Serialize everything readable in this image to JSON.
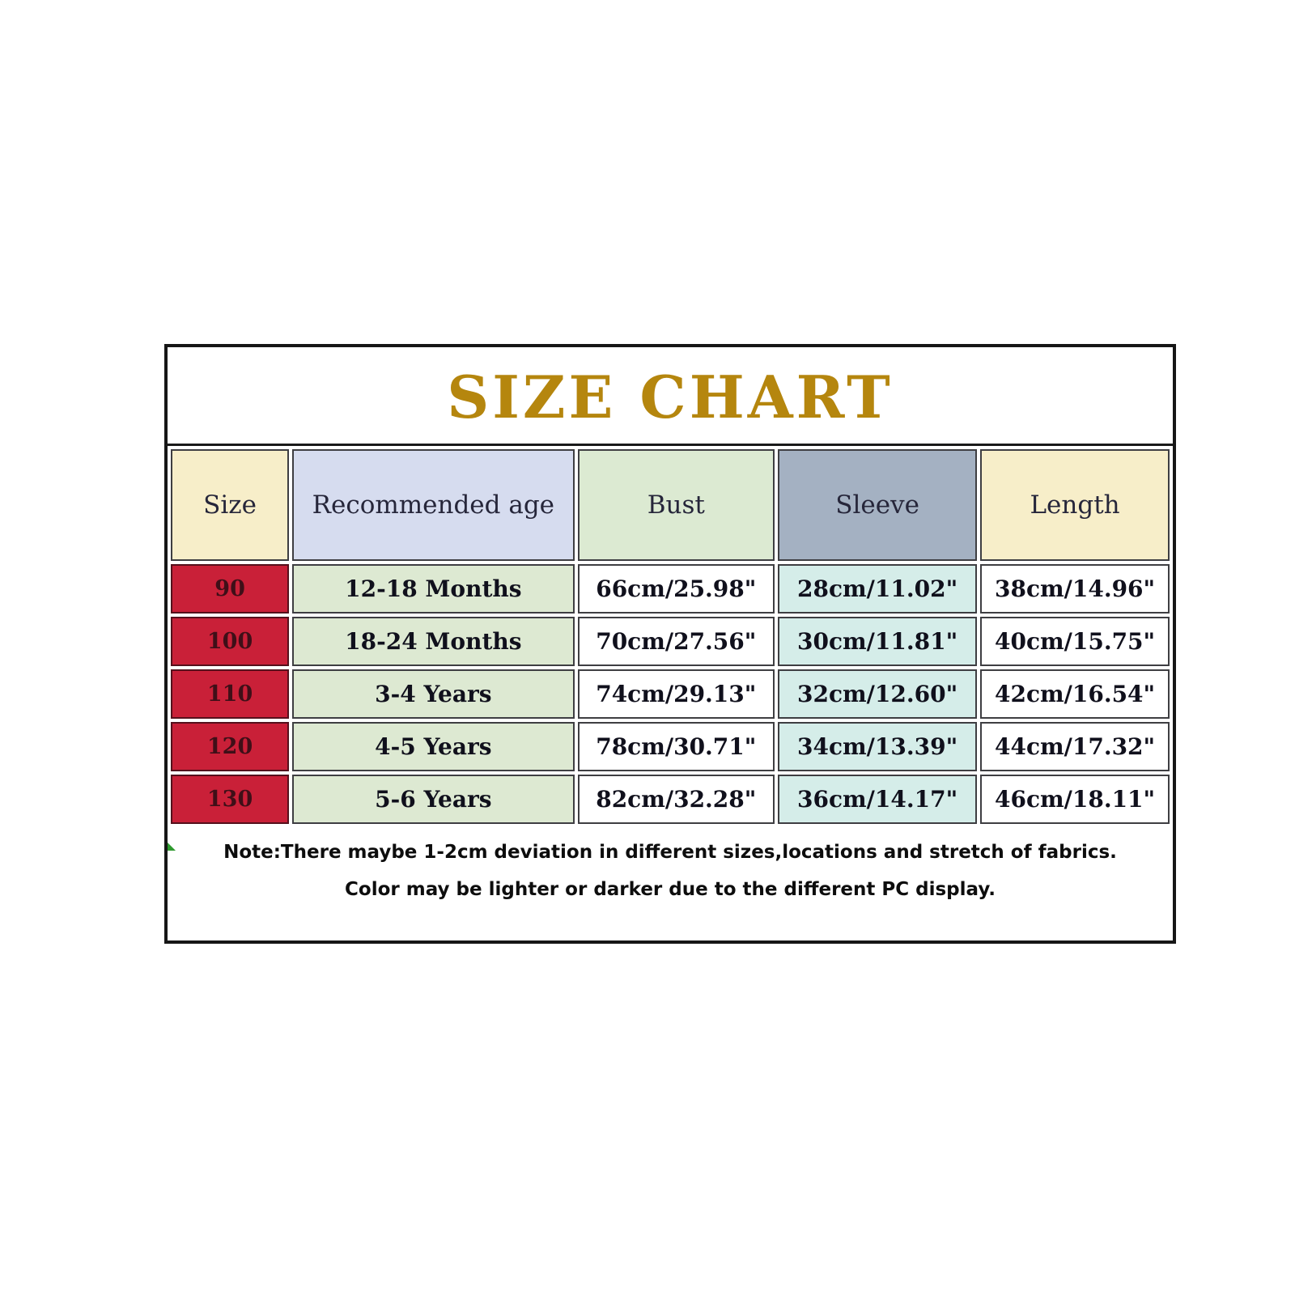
{
  "title": "SIZE CHART",
  "chart_data": {
    "type": "table",
    "title": "SIZE CHART",
    "columns": [
      "Size",
      "Recommended age",
      "Bust",
      "Sleeve",
      "Length"
    ],
    "rows": [
      [
        "90",
        "12-18 Months",
        "66cm/25.98\"",
        "28cm/11.02\"",
        "38cm/14.96\""
      ],
      [
        "100",
        "18-24 Months",
        "70cm/27.56\"",
        "30cm/11.81\"",
        "40cm/15.75\""
      ],
      [
        "110",
        "3-4 Years",
        "74cm/29.13\"",
        "32cm/12.60\"",
        "42cm/16.54\""
      ],
      [
        "120",
        "4-5 Years",
        "78cm/30.71\"",
        "34cm/13.39\"",
        "44cm/17.32\""
      ],
      [
        "130",
        "5-6 Years",
        "82cm/32.28\"",
        "36cm/14.17\"",
        "46cm/18.11\""
      ]
    ]
  },
  "notes": {
    "line1": "Note:There maybe 1-2cm deviation in different sizes,locations and stretch of fabrics.",
    "line2": "Color may be lighter or darker due to the different PC display."
  },
  "colors": {
    "title_gold": "#b5860e",
    "header_cells": [
      "#f7eec9",
      "#d6dcef",
      "#dcead2",
      "#a4b1c2",
      "#f7eec9"
    ],
    "data_columns": [
      "#c92038",
      "#dde9d2",
      "#ffffff",
      "#d5ede9",
      "#ffffff"
    ],
    "size_text": "#3f0f18",
    "border_dark": "#3e3e42",
    "border_red": "#55101c"
  }
}
